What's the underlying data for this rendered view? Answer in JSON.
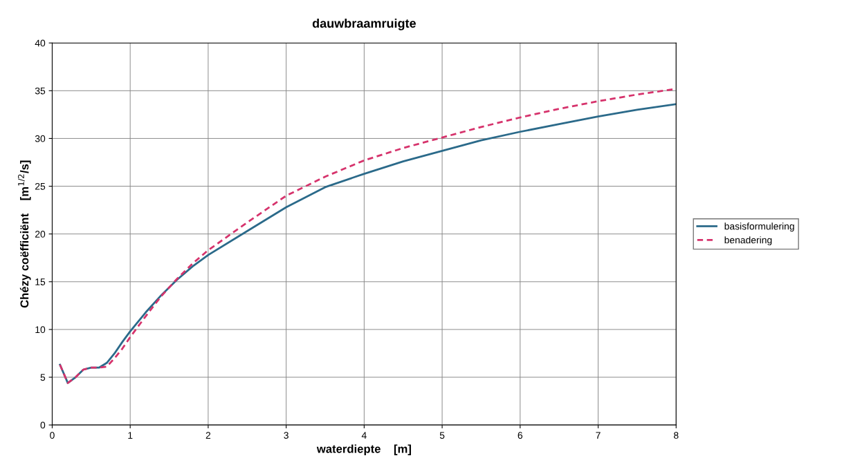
{
  "chart_data": {
    "type": "line",
    "title": "dauwbraamruigte",
    "xlabel": "waterdiepte    [m]",
    "ylabel": "Chézy coëfficiënt    [m$^{1/2}$/s]",
    "xlim": [
      0,
      8
    ],
    "xticks": [
      0,
      1,
      2,
      3,
      4,
      5,
      6,
      7,
      8
    ],
    "ylim": [
      0,
      40
    ],
    "yticks": [
      0,
      5,
      10,
      15,
      20,
      25,
      30,
      35,
      40
    ],
    "grid": true,
    "legend": "right",
    "marker": "none",
    "series": [
      {
        "name": "basisformulering",
        "color": "#2b6a8a",
        "line_style": "solid",
        "x": [
          0.1,
          0.2,
          0.3,
          0.4,
          0.5,
          0.6,
          0.7,
          0.8,
          0.9,
          1.0,
          1.2,
          1.4,
          1.6,
          1.8,
          2.0,
          2.5,
          3.0,
          3.5,
          4.0,
          4.5,
          5.0,
          5.5,
          6.0,
          6.5,
          7.0,
          7.5,
          8.0
        ],
        "values": [
          6.3,
          4.4,
          5.0,
          5.8,
          6.0,
          6.0,
          6.5,
          7.5,
          8.7,
          9.8,
          11.8,
          13.6,
          15.2,
          16.6,
          17.8,
          20.3,
          22.8,
          24.9,
          26.3,
          27.6,
          28.7,
          29.8,
          30.7,
          31.5,
          32.3,
          33.0,
          33.6
        ]
      },
      {
        "name": "benadering",
        "color": "#d6336c",
        "line_style": "dashed",
        "x": [
          0.1,
          0.2,
          0.3,
          0.4,
          0.5,
          0.6,
          0.7,
          0.8,
          0.9,
          1.0,
          1.1,
          1.2,
          1.4,
          1.6,
          1.8,
          2.0,
          2.5,
          3.0,
          3.5,
          4.0,
          4.5,
          5.0,
          5.5,
          6.0,
          6.5,
          7.0,
          7.5,
          8.0
        ],
        "values": [
          6.3,
          4.4,
          5.0,
          5.8,
          6.0,
          6.0,
          6.1,
          7.0,
          8.0,
          9.2,
          10.3,
          11.4,
          13.5,
          15.3,
          16.9,
          18.3,
          21.2,
          24.0,
          26.0,
          27.7,
          29.0,
          30.1,
          31.2,
          32.2,
          33.1,
          33.9,
          34.6,
          35.2
        ]
      }
    ]
  }
}
